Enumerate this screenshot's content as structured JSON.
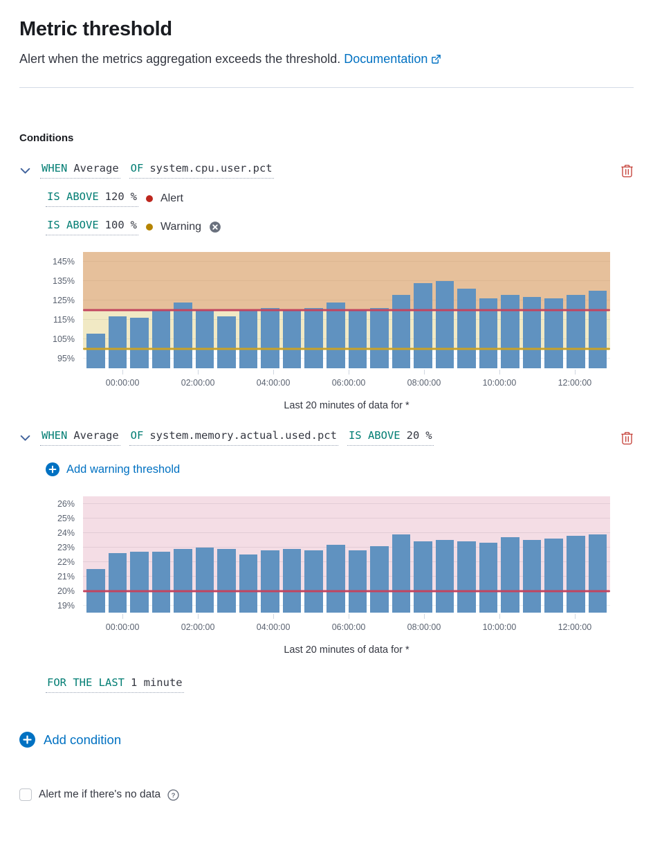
{
  "header": {
    "title": "Metric threshold",
    "subtitle": "Alert when the metrics aggregation exceeds the threshold.",
    "doc_link_label": "Documentation"
  },
  "conditions_label": "Conditions",
  "condition1": {
    "when_label": "WHEN",
    "aggregation": "Average",
    "of_label": "OF",
    "metric": "system.cpu.user.pct",
    "alert_row": {
      "operator": "IS ABOVE",
      "value": "120",
      "unit": "%",
      "level": "Alert",
      "dot_color": "#BD271E"
    },
    "warning_row": {
      "operator": "IS ABOVE",
      "value": "100",
      "unit": "%",
      "level": "Warning",
      "dot_color": "#B58400"
    }
  },
  "condition2": {
    "when_label": "WHEN",
    "aggregation": "Average",
    "of_label": "OF",
    "metric": "system.memory.actual.used.pct",
    "operator": "IS ABOVE",
    "value": "20",
    "unit": "%",
    "add_warning_label": "Add warning threshold",
    "for_the_last_label": "FOR THE LAST",
    "for_the_last_value": "1 minute"
  },
  "add_condition_label": "Add condition",
  "no_data_label": "Alert me if there's no data",
  "icons": {
    "help_glyph": "?"
  },
  "colors": {
    "link": "#0071c2",
    "keyword_teal": "#017D73",
    "danger": "#BD271E",
    "warning_gold": "#B58400",
    "bar_blue": "#6092C0"
  },
  "chart_data": [
    {
      "type": "bar",
      "caption": "Last 20 minutes of data for *",
      "x_tick_labels": [
        "00:00:00",
        "02:00:00",
        "04:00:00",
        "06:00:00",
        "08:00:00",
        "10:00:00",
        "12:00:00"
      ],
      "values": [
        108,
        117,
        116,
        120,
        124,
        120,
        117,
        120,
        121,
        120,
        121,
        124,
        120,
        121,
        128,
        134,
        135,
        131,
        126,
        128,
        127,
        126,
        128,
        130
      ],
      "ylim": [
        90,
        150
      ],
      "yticks": [
        95,
        105,
        115,
        125,
        135,
        145
      ],
      "y_unit": "%",
      "bar_color": "#6092C0",
      "thresholds": [
        {
          "kind": "warning",
          "value": 100,
          "line_color": "#C9A227",
          "region_color": "rgba(214,191,87,0.35)"
        },
        {
          "kind": "alert",
          "value": 120,
          "line_color": "#C2455F",
          "region_color": "rgba(205,98,60,0.30)"
        }
      ],
      "x_label_start_pct": 7.5,
      "x_label_step_pct": 14.3
    },
    {
      "type": "bar",
      "caption": "Last 20 minutes of data for *",
      "x_tick_labels": [
        "00:00:00",
        "02:00:00",
        "04:00:00",
        "06:00:00",
        "08:00:00",
        "10:00:00",
        "12:00:00"
      ],
      "values": [
        21.5,
        22.6,
        22.7,
        22.7,
        22.9,
        23.0,
        22.9,
        22.5,
        22.8,
        22.9,
        22.8,
        23.2,
        22.8,
        23.1,
        23.9,
        23.4,
        23.5,
        23.4,
        23.3,
        23.7,
        23.5,
        23.6,
        23.8,
        23.9
      ],
      "ylim": [
        18.5,
        26.5
      ],
      "yticks": [
        19,
        20,
        21,
        22,
        23,
        24,
        25,
        26
      ],
      "y_unit": "%",
      "bar_color": "#6092C0",
      "thresholds": [
        {
          "kind": "alert",
          "value": 20,
          "line_color": "#C2455F",
          "region_color": "rgba(196,69,110,0.18)"
        }
      ],
      "x_label_start_pct": 7.5,
      "x_label_step_pct": 14.3
    }
  ]
}
